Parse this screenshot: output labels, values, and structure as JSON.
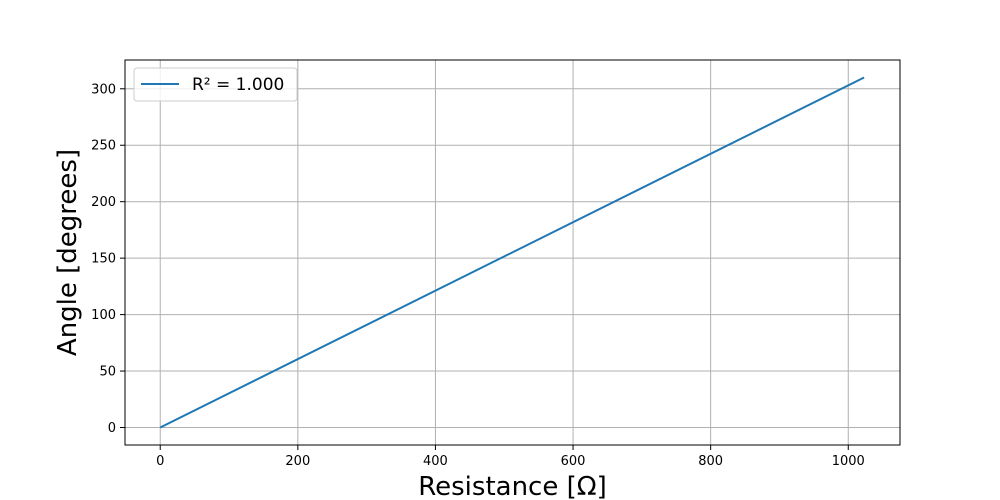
{
  "chart_data": {
    "type": "line",
    "title": "",
    "xlabel": "Resistance [Ω]",
    "ylabel": "Angle [degrees]",
    "xlim": [
      -51.2,
      1075.2
    ],
    "ylim": [
      -15.5,
      325.5
    ],
    "xticks": [
      0,
      200,
      400,
      600,
      800,
      1000
    ],
    "yticks": [
      0,
      50,
      100,
      150,
      200,
      250,
      300
    ],
    "grid": true,
    "legend_position": "top-left",
    "series": [
      {
        "name": "R² = 1.000",
        "color": "#1f77b4",
        "x": [
          0,
          1023
        ],
        "y": [
          0,
          310
        ]
      }
    ]
  }
}
